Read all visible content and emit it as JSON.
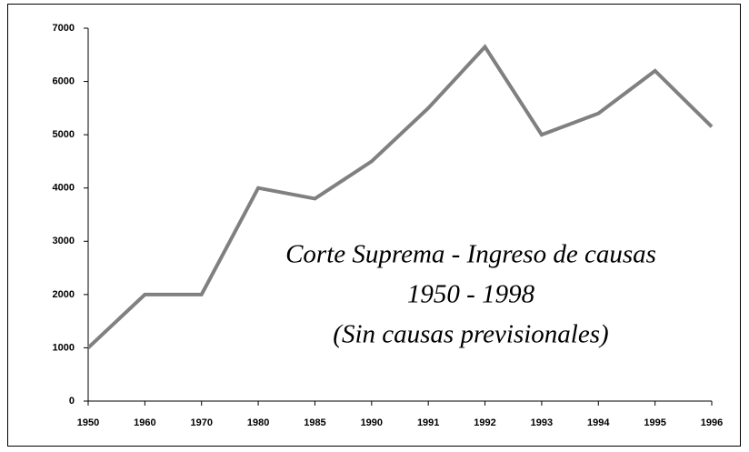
{
  "chart_data": {
    "type": "line",
    "annotation": [
      "Corte Suprema - Ingreso de causas",
      "1950  - 1998",
      "(Sin causas previsionales)"
    ],
    "categories": [
      "1950",
      "1960",
      "1970",
      "1980",
      "1985",
      "1990",
      "1991",
      "1992",
      "1993",
      "1994",
      "1995",
      "1996"
    ],
    "series": [
      {
        "color": "#808080",
        "values": [
          1000,
          2000,
          2000,
          4000,
          3800,
          4500,
          5500,
          6650,
          5000,
          5400,
          6200,
          5150
        ]
      }
    ],
    "ylim": [
      0,
      7000
    ],
    "yticks": [
      0,
      1000,
      2000,
      3000,
      4000,
      5000,
      6000,
      7000
    ]
  }
}
